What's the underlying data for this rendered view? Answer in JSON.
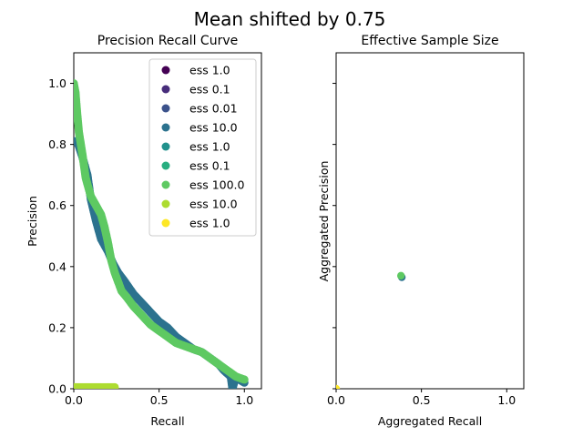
{
  "suptitle": "Mean shifted by  0.75",
  "chart_data": [
    {
      "type": "scatter",
      "title": "Precision Recall Curve",
      "xlabel": "Recall",
      "ylabel": "Precision",
      "xlim": [
        0.0,
        1.1
      ],
      "ylim": [
        0.0,
        1.1
      ],
      "xticks": [
        0.0,
        0.5,
        1.0
      ],
      "xtick_labels": [
        "0.0",
        "0.5",
        "1.0"
      ],
      "yticks": [
        0.0,
        0.2,
        0.4,
        0.6,
        0.8,
        1.0
      ],
      "ytick_labels": [
        "0.0",
        "0.2",
        "0.4",
        "0.6",
        "0.8",
        "1.0"
      ],
      "grid": false,
      "legend_position": "top-right",
      "series": [
        {
          "name": "ess 1.0",
          "color": "#440154",
          "x": [],
          "y": []
        },
        {
          "name": "ess 0.1",
          "color": "#472d7b",
          "x": [],
          "y": []
        },
        {
          "name": "ess 0.01",
          "color": "#3b528b",
          "x": [],
          "y": []
        },
        {
          "name": "ess 10.0",
          "color": "#2c728e",
          "x": [
            0.0,
            0.02,
            0.05,
            0.08,
            0.1,
            0.13,
            0.16,
            0.2,
            0.23,
            0.26,
            0.3,
            0.35,
            0.4,
            0.45,
            0.5,
            0.55,
            0.6,
            0.65,
            0.7,
            0.75,
            0.8,
            0.85,
            0.88,
            0.9,
            0.92,
            0.93,
            0.95,
            0.97,
            1.0
          ],
          "y": [
            0.81,
            0.81,
            0.76,
            0.7,
            0.62,
            0.55,
            0.49,
            0.45,
            0.41,
            0.38,
            0.35,
            0.31,
            0.28,
            0.25,
            0.22,
            0.2,
            0.17,
            0.15,
            0.13,
            0.12,
            0.1,
            0.08,
            0.06,
            0.05,
            0.04,
            0.0,
            0.04,
            0.03,
            0.02
          ]
        },
        {
          "name": "ess 1.0",
          "color": "#21918c",
          "x": [],
          "y": []
        },
        {
          "name": "ess 0.1",
          "color": "#28ae80",
          "x": [],
          "y": []
        },
        {
          "name": "ess 100.0",
          "color": "#5ec962",
          "x": [
            0.0,
            0.01,
            0.02,
            0.03,
            0.05,
            0.07,
            0.1,
            0.13,
            0.16,
            0.18,
            0.2,
            0.22,
            0.24,
            0.26,
            0.28,
            0.31,
            0.35,
            0.4,
            0.45,
            0.5,
            0.55,
            0.6,
            0.65,
            0.7,
            0.75,
            0.8,
            0.85,
            0.9,
            0.95,
            1.0
          ],
          "y": [
            1.0,
            0.97,
            0.9,
            0.84,
            0.77,
            0.69,
            0.63,
            0.6,
            0.57,
            0.53,
            0.48,
            0.42,
            0.38,
            0.35,
            0.32,
            0.3,
            0.27,
            0.24,
            0.21,
            0.19,
            0.17,
            0.15,
            0.14,
            0.13,
            0.12,
            0.1,
            0.08,
            0.06,
            0.04,
            0.03
          ]
        },
        {
          "name": "ess 10.0",
          "color": "#addc30",
          "x": [
            0.0,
            0.02,
            0.04,
            0.06,
            0.08,
            0.1,
            0.12,
            0.14,
            0.16,
            0.2,
            0.22,
            0.24
          ],
          "y": [
            0.005,
            0.005,
            0.005,
            0.005,
            0.005,
            0.005,
            0.005,
            0.005,
            0.005,
            0.005,
            0.005,
            0.005
          ]
        },
        {
          "name": "ess 1.0",
          "color": "#fde725",
          "x": [],
          "y": []
        }
      ]
    },
    {
      "type": "scatter",
      "title": "Effective Sample Size",
      "xlabel": "Aggregated Recall",
      "ylabel": "Aggregated Precision",
      "xlim": [
        0.0,
        1.1
      ],
      "ylim": [
        0.0,
        1.1
      ],
      "xticks": [
        0.0,
        0.5,
        1.0
      ],
      "xtick_labels": [
        "0.0",
        "0.5",
        "1.0"
      ],
      "yticks": [
        0.0,
        0.2,
        0.4,
        0.6,
        0.8,
        1.0
      ],
      "grid": false,
      "points": [
        {
          "x": 0.0,
          "y": 0.0,
          "color": "#fde725"
        },
        {
          "x": 0.385,
          "y": 0.365,
          "color": "#2c728e"
        },
        {
          "x": 0.38,
          "y": 0.37,
          "color": "#5ec962"
        }
      ]
    }
  ]
}
